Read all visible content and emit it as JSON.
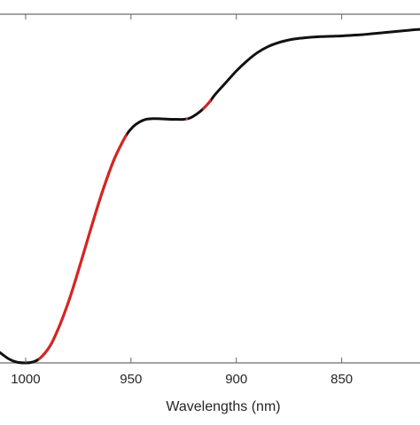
{
  "chart_data": {
    "type": "line",
    "title": "",
    "xlabel": "Wavelengths (nm)",
    "ylabel": "",
    "x_reversed": true,
    "xlim": [
      1013,
      812
    ],
    "ylim": [
      0,
      1
    ],
    "x_ticks": [
      1000,
      950,
      900,
      850
    ],
    "x_tick_labels": [
      "1000",
      "950",
      "900",
      "850"
    ],
    "y_ticks_visible": false,
    "grid": false,
    "legend": "none",
    "colors": {
      "line": "#111111",
      "highlight": "#dd2222",
      "axes": "#666666",
      "text": "#262626"
    },
    "series": [
      {
        "x": [
          1013,
          1008,
          1004,
          1000,
          997,
          994,
          991,
          988,
          985,
          982,
          979,
          976,
          973,
          970,
          967,
          964,
          961,
          958,
          955,
          952,
          949,
          946,
          943,
          940,
          937,
          934,
          931,
          928,
          925,
          922,
          919,
          916,
          913,
          910,
          905,
          900,
          895,
          890,
          885,
          880,
          875,
          870,
          865,
          860,
          855,
          850,
          845,
          840,
          835,
          830,
          825,
          820,
          815,
          812
        ],
        "values": [
          0.035,
          0.012,
          0.002,
          0.0,
          0.002,
          0.01,
          0.028,
          0.055,
          0.095,
          0.142,
          0.195,
          0.255,
          0.318,
          0.382,
          0.445,
          0.505,
          0.56,
          0.61,
          0.65,
          0.685,
          0.708,
          0.722,
          0.73,
          0.732,
          0.732,
          0.731,
          0.73,
          0.73,
          0.73,
          0.734,
          0.745,
          0.76,
          0.78,
          0.805,
          0.84,
          0.875,
          0.905,
          0.93,
          0.948,
          0.96,
          0.968,
          0.973,
          0.976,
          0.978,
          0.979,
          0.98,
          0.982,
          0.984,
          0.987,
          0.99,
          0.993,
          0.996,
          0.999,
          1.0
        ]
      }
    ],
    "highlighted_x_ranges": [
      [
        994,
        963
      ],
      [
        963,
        952
      ],
      [
        924,
        923
      ],
      [
        916,
        912
      ]
    ]
  }
}
